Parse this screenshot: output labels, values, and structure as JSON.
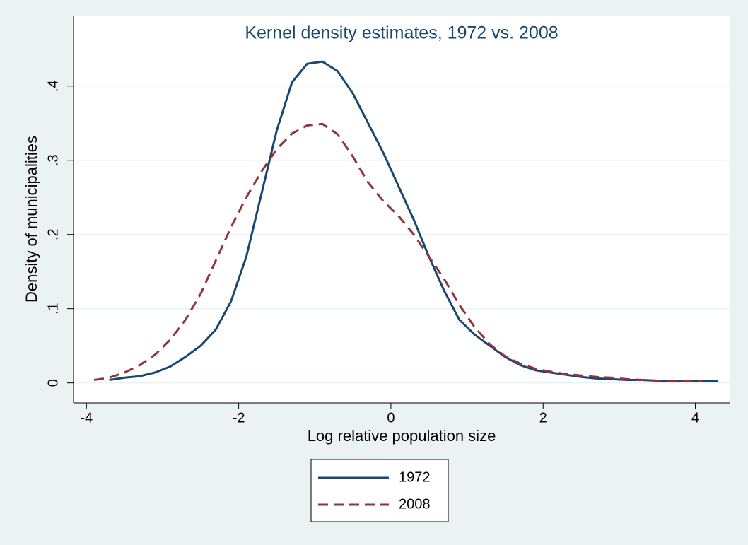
{
  "chart_data": {
    "type": "line",
    "title": "Kernel density estimates, 1972 vs. 2008",
    "x_label": "Log relative population size",
    "y_label": "Density of municipalities",
    "x": [
      -3.9,
      -3.7,
      -3.5,
      -3.3,
      -3.1,
      -2.9,
      -2.7,
      -2.5,
      -2.3,
      -2.1,
      -1.9,
      -1.7,
      -1.5,
      -1.3,
      -1.1,
      -0.9,
      -0.7,
      -0.5,
      -0.3,
      -0.1,
      0.1,
      0.3,
      0.5,
      0.7,
      0.9,
      1.1,
      1.3,
      1.5,
      1.7,
      1.9,
      2.1,
      2.3,
      2.5,
      2.7,
      2.9,
      3.1,
      3.3,
      3.5,
      3.7,
      3.9,
      4.1,
      4.3
    ],
    "series": [
      {
        "name": "1972",
        "color": "#1a476f",
        "dash": "solid",
        "values": [
          null,
          0.004,
          0.007,
          0.009,
          0.014,
          0.022,
          0.035,
          0.05,
          0.072,
          0.11,
          0.17,
          0.255,
          0.34,
          0.405,
          0.43,
          0.433,
          0.42,
          0.39,
          0.35,
          0.31,
          0.265,
          0.22,
          0.17,
          0.124,
          0.085,
          0.065,
          0.05,
          0.035,
          0.024,
          0.017,
          0.014,
          0.011,
          0.008,
          0.006,
          0.005,
          0.004,
          0.004,
          0.003,
          0.003,
          0.003,
          0.003,
          0.002
        ]
      },
      {
        "name": "2008",
        "color": "#90353b",
        "dash": "dashed",
        "values": [
          0.004,
          0.007,
          0.014,
          0.024,
          0.038,
          0.058,
          0.085,
          0.12,
          0.165,
          0.21,
          0.25,
          0.285,
          0.315,
          0.336,
          0.347,
          0.349,
          0.335,
          0.305,
          0.27,
          0.245,
          0.225,
          0.2,
          0.17,
          0.14,
          0.105,
          0.075,
          0.052,
          0.036,
          0.026,
          0.019,
          0.015,
          0.012,
          0.01,
          0.008,
          0.007,
          0.005,
          0.004,
          0.003,
          0.002,
          0.003,
          0.003,
          null
        ]
      }
    ],
    "xlim": [
      -4.17,
      4.45
    ],
    "xticks": [
      -4,
      -2,
      0,
      2,
      4
    ],
    "ylim": [
      -0.027,
      0.495
    ],
    "yticks": [
      0,
      {
        "value": 0.1,
        "label": ".1"
      },
      {
        "value": 0.2,
        "label": ".2"
      },
      {
        "value": 0.3,
        "label": ".3"
      },
      {
        "value": 0.4,
        "label": ".4"
      }
    ],
    "grid": true,
    "legend": "bottom"
  }
}
